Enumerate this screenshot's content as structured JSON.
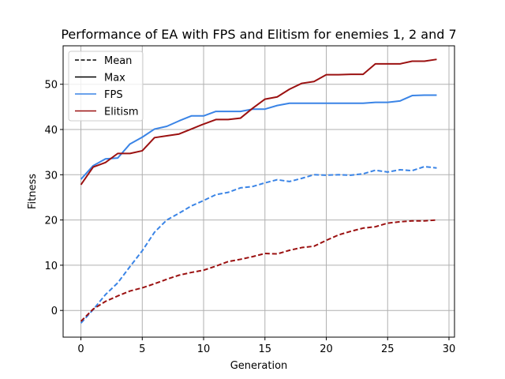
{
  "chart_data": {
    "type": "line",
    "title": "Performance of EA with FPS and Elitism for enemies 1, 2 and 7",
    "xlabel": "Generation",
    "ylabel": "Fitness",
    "xlim": [
      -1.45,
      30.45
    ],
    "ylim": [
      -5.9,
      58.5
    ],
    "xticks": [
      0,
      5,
      10,
      15,
      20,
      25,
      30
    ],
    "yticks": [
      0,
      10,
      20,
      30,
      40,
      50
    ],
    "grid": true,
    "legend_position": "top-left",
    "legend": [
      {
        "label": "Mean",
        "color": "#000000",
        "dash": "dashed"
      },
      {
        "label": "Max",
        "color": "#000000",
        "dash": "solid"
      },
      {
        "label": "FPS",
        "color": "#3a84e6",
        "dash": "solid"
      },
      {
        "label": "Elitism",
        "color": "#9b1111",
        "dash": "solid"
      }
    ],
    "x": [
      0,
      1,
      2,
      3,
      4,
      5,
      6,
      7,
      8,
      9,
      10,
      11,
      12,
      13,
      14,
      15,
      16,
      17,
      18,
      19,
      20,
      21,
      22,
      23,
      24,
      25,
      26,
      27,
      28,
      29
    ],
    "series": [
      {
        "name": "FPS",
        "stat": "Max",
        "color": "#3a84e6",
        "dash": "solid",
        "values": [
          29.0,
          32.0,
          33.5,
          33.7,
          36.8,
          38.3,
          40.1,
          40.7,
          41.9,
          43.0,
          43.0,
          44.0,
          44.0,
          44.0,
          44.5,
          44.5,
          45.3,
          45.8,
          45.8,
          45.8,
          45.8,
          45.8,
          45.8,
          45.8,
          46.0,
          46.0,
          46.3,
          47.5,
          47.6,
          47.6
        ]
      },
      {
        "name": "Elitism",
        "stat": "Max",
        "color": "#9b1111",
        "dash": "solid",
        "values": [
          27.8,
          31.7,
          32.7,
          34.7,
          34.7,
          35.3,
          38.2,
          38.6,
          39.0,
          40.1,
          41.2,
          42.2,
          42.2,
          42.5,
          44.7,
          46.7,
          47.2,
          48.9,
          50.2,
          50.6,
          52.1,
          52.1,
          52.2,
          52.2,
          54.5,
          54.5,
          54.5,
          55.1,
          55.1,
          55.5
        ]
      },
      {
        "name": "FPS",
        "stat": "Mean",
        "color": "#3a84e6",
        "dash": "dashed",
        "values": [
          -2.8,
          0.2,
          3.5,
          6.1,
          9.7,
          13.2,
          17.3,
          20.0,
          21.5,
          23.1,
          24.3,
          25.6,
          26.1,
          27.1,
          27.4,
          28.2,
          28.9,
          28.5,
          29.2,
          30.0,
          29.9,
          30.0,
          29.9,
          30.2,
          31.0,
          30.6,
          31.1,
          30.9,
          31.8,
          31.5
        ]
      },
      {
        "name": "Elitism",
        "stat": "Mean",
        "color": "#9b1111",
        "dash": "dashed",
        "values": [
          -2.4,
          0.3,
          2.0,
          3.2,
          4.3,
          5.0,
          5.9,
          6.9,
          7.8,
          8.4,
          8.9,
          9.8,
          10.8,
          11.3,
          11.9,
          12.6,
          12.5,
          13.3,
          13.9,
          14.2,
          15.5,
          16.7,
          17.5,
          18.2,
          18.5,
          19.3,
          19.6,
          19.8,
          19.8,
          20.0
        ]
      }
    ]
  }
}
